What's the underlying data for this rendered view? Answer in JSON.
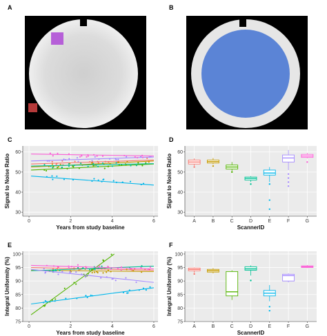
{
  "panels": {
    "A": {
      "letter": "A"
    },
    "B": {
      "letter": "B"
    }
  },
  "colors": {
    "A": "#f8766d",
    "B": "#c49a00",
    "C": "#53b400",
    "D": "#00c094",
    "E": "#00b6eb",
    "F": "#a58aff",
    "G": "#fb61d7",
    "roi_purple": "#b65fd8",
    "roi_red": "#b53a3a",
    "roi_blue": "#5b84d6"
  },
  "chart_data": [
    {
      "letter": "C",
      "type": "scatter",
      "xlabel": "Years from study baseline",
      "ylabel": "Signal to Noise Ratio",
      "xlim": [
        -0.3,
        6.2
      ],
      "ylim": [
        28,
        63
      ],
      "xticks": [
        0,
        2,
        4,
        6
      ],
      "yticks": [
        30,
        40,
        50,
        60
      ],
      "series": [
        {
          "key": "A",
          "trend": [
            [
              0.1,
              54.0
            ],
            [
              6.0,
              56.0
            ]
          ]
        },
        {
          "key": "B",
          "trend": [
            [
              0.1,
              52.5
            ],
            [
              6.0,
              55.5
            ]
          ]
        },
        {
          "key": "C",
          "trend": [
            [
              0.1,
              51.0
            ],
            [
              6.0,
              54.0
            ]
          ]
        },
        {
          "key": "D",
          "trend": [
            [
              0.1,
              53.0
            ],
            [
              6.0,
              54.2
            ]
          ]
        },
        {
          "key": "E",
          "trend": [
            [
              0.1,
              48.0
            ],
            [
              6.0,
              43.5
            ]
          ]
        },
        {
          "key": "F",
          "trend": [
            [
              0.1,
              55.5
            ],
            [
              6.0,
              57.5
            ]
          ]
        },
        {
          "key": "G",
          "trend": [
            [
              0.1,
              59.0
            ],
            [
              6.0,
              58.0
            ]
          ]
        }
      ]
    },
    {
      "letter": "D",
      "type": "box",
      "xlabel": "ScannerID",
      "ylabel": "Signal to Noise Ratio",
      "ylim": [
        28,
        63
      ],
      "yticks": [
        30,
        40,
        50,
        60
      ],
      "categories": [
        "A",
        "B",
        "C",
        "D",
        "E",
        "F",
        "G"
      ],
      "boxes": [
        {
          "key": "A",
          "q1": 54.0,
          "median": 55.0,
          "q3": 56.0,
          "lo": 53.0,
          "hi": 56.8,
          "outliers": [
            52.5
          ]
        },
        {
          "key": "B",
          "q1": 54.5,
          "median": 55.2,
          "q3": 56.0,
          "lo": 53.8,
          "hi": 57.0,
          "outliers": [
            53.0
          ]
        },
        {
          "key": "C",
          "q1": 51.5,
          "median": 52.5,
          "q3": 53.5,
          "lo": 50.5,
          "hi": 55.0,
          "outliers": [
            50.0
          ]
        },
        {
          "key": "D",
          "q1": 46.0,
          "median": 46.8,
          "q3": 47.5,
          "lo": 45.0,
          "hi": 48.0,
          "outliers": [
            44.0
          ]
        },
        {
          "key": "E",
          "q1": 48.5,
          "median": 49.5,
          "q3": 51.0,
          "lo": 45.0,
          "hi": 52.5,
          "outliers": [
            44.0,
            36.0,
            31.5
          ]
        },
        {
          "key": "F",
          "q1": 55.0,
          "median": 57.0,
          "q3": 58.5,
          "lo": 51.0,
          "hi": 61.0,
          "outliers": [
            49.0,
            47.0,
            45.0,
            43.0
          ]
        },
        {
          "key": "G",
          "q1": 57.3,
          "median": 58.0,
          "q3": 58.8,
          "lo": 56.8,
          "hi": 59.5,
          "outliers": [
            55.0
          ]
        }
      ]
    },
    {
      "letter": "E",
      "type": "scatter",
      "xlabel": "Years from study baseline",
      "ylabel": "Integral Uniformity (%)",
      "xlim": [
        -0.3,
        6.2
      ],
      "ylim": [
        75,
        101
      ],
      "xticks": [
        0,
        2,
        4,
        6
      ],
      "yticks": [
        75,
        80,
        85,
        90,
        95,
        100
      ],
      "series": [
        {
          "key": "A",
          "trend": [
            [
              0.1,
              95.0
            ],
            [
              6.0,
              94.0
            ]
          ]
        },
        {
          "key": "B",
          "trend": [
            [
              0.1,
              94.0
            ],
            [
              6.0,
              93.5
            ]
          ]
        },
        {
          "key": "C",
          "trend": [
            [
              0.1,
              77.5
            ],
            [
              4.1,
              100.0
            ]
          ]
        },
        {
          "key": "D",
          "trend": [
            [
              0.1,
              93.8
            ],
            [
              6.0,
              95.5
            ]
          ]
        },
        {
          "key": "E",
          "trend": [
            [
              0.1,
              81.5
            ],
            [
              6.0,
              87.5
            ]
          ]
        },
        {
          "key": "F",
          "trend": [
            [
              0.1,
              94.3
            ],
            [
              6.0,
              89.5
            ]
          ]
        },
        {
          "key": "G",
          "trend": [
            [
              0.1,
              95.8
            ],
            [
              6.0,
              94.5
            ]
          ]
        }
      ]
    },
    {
      "letter": "F",
      "type": "box",
      "xlabel": "ScannerID",
      "ylabel": "Integral Uniformity (%)",
      "ylim": [
        75,
        101
      ],
      "yticks": [
        75,
        80,
        85,
        90,
        95,
        100
      ],
      "categories": [
        "A",
        "B",
        "C",
        "D",
        "E",
        "F",
        "G"
      ],
      "boxes": [
        {
          "key": "A",
          "q1": 93.8,
          "median": 94.3,
          "q3": 94.8,
          "lo": 93.0,
          "hi": 95.0,
          "outliers": [
            92.6
          ]
        },
        {
          "key": "B",
          "q1": 93.3,
          "median": 93.8,
          "q3": 94.3,
          "lo": 92.8,
          "hi": 94.8,
          "outliers": []
        },
        {
          "key": "C",
          "q1": 84.5,
          "median": 86.0,
          "q3": 93.5,
          "lo": 83.0,
          "hi": 94.0,
          "outliers": []
        },
        {
          "key": "D",
          "q1": 94.0,
          "median": 94.5,
          "q3": 95.3,
          "lo": 92.0,
          "hi": 95.8,
          "outliers": [
            90.2
          ]
        },
        {
          "key": "E",
          "q1": 84.5,
          "median": 85.5,
          "q3": 86.5,
          "lo": 82.5,
          "hi": 88.5,
          "outliers": [
            80.5,
            79.0
          ]
        },
        {
          "key": "F",
          "q1": 90.0,
          "median": 92.0,
          "q3": 92.5,
          "lo": 89.5,
          "hi": 92.8,
          "outliers": []
        },
        {
          "key": "G",
          "q1": 95.0,
          "median": 95.3,
          "q3": 95.6,
          "lo": 94.8,
          "hi": 95.9,
          "outliers": []
        }
      ]
    }
  ]
}
